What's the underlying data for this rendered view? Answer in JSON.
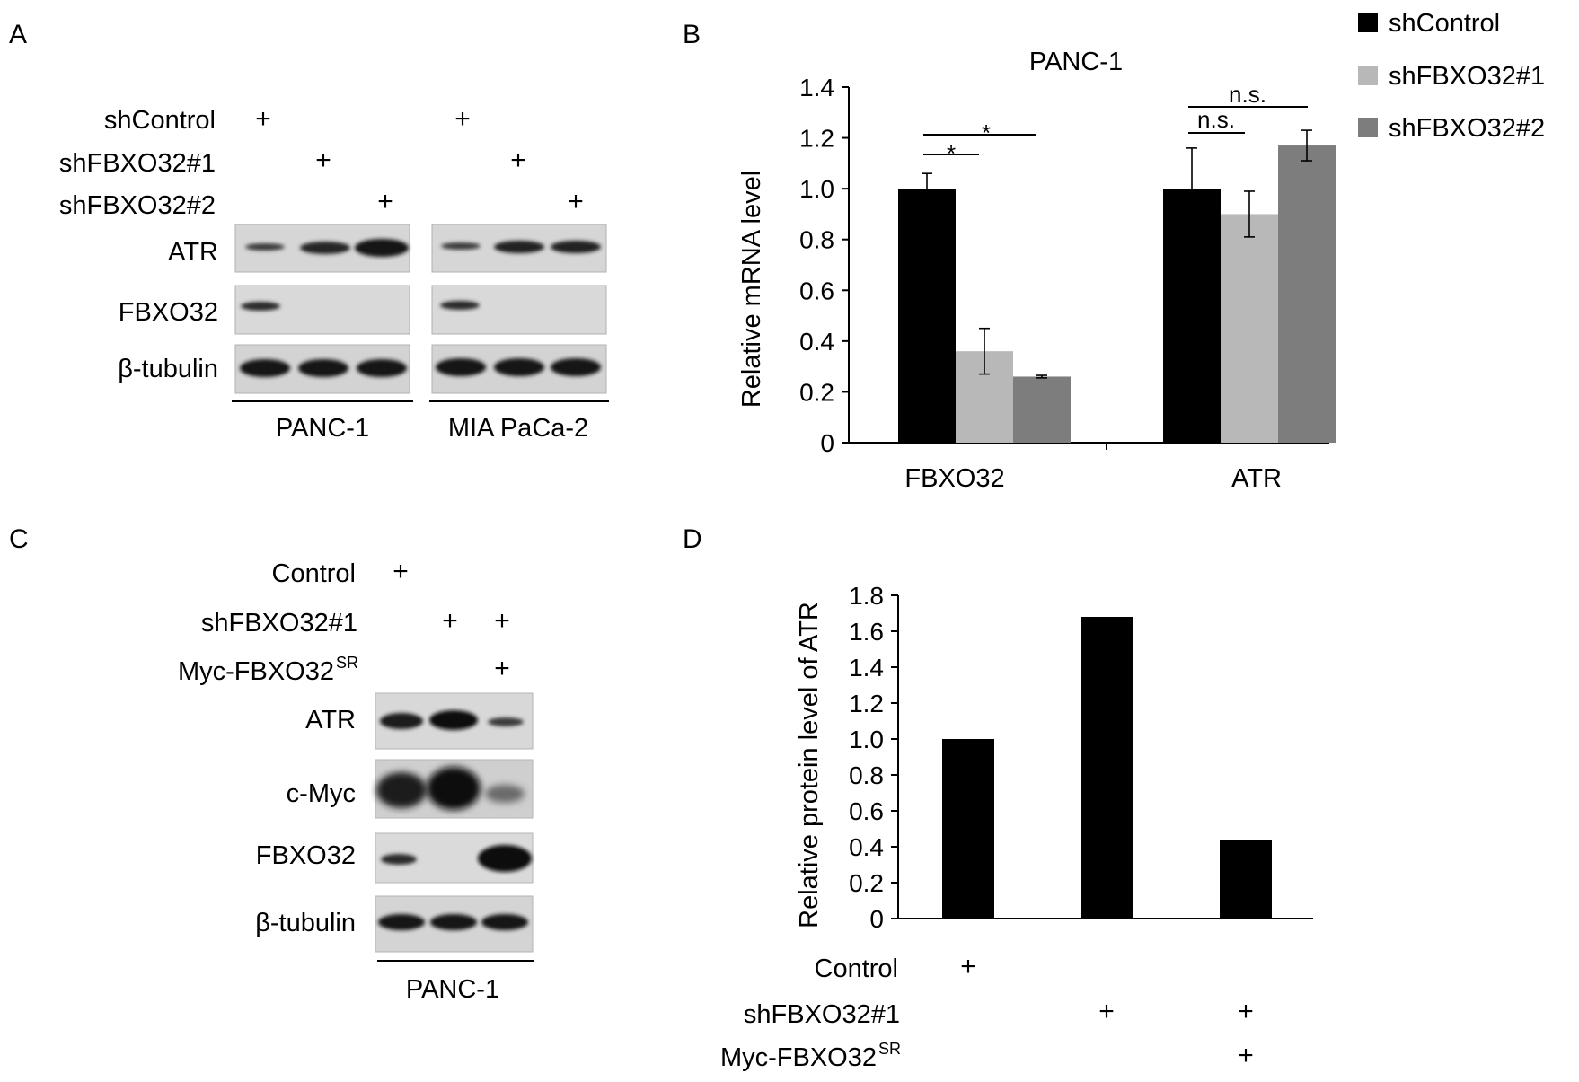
{
  "panelA": {
    "letter": "A",
    "rows": [
      {
        "label": "shControl",
        "marks": [
          "+",
          "",
          "",
          "+",
          "",
          ""
        ]
      },
      {
        "label": "shFBXO32#1",
        "marks": [
          "",
          "+",
          "",
          "",
          "+",
          ""
        ]
      },
      {
        "label": "shFBXO32#2",
        "marks": [
          "",
          "",
          "+",
          "",
          "",
          "+"
        ]
      }
    ],
    "blots": [
      "ATR",
      "FBXO32",
      "β-tubulin"
    ],
    "cell_lines": [
      "PANC-1",
      "MIA PaCa-2"
    ]
  },
  "panelB": {
    "letter": "B",
    "chart_data": {
      "type": "bar",
      "title": "PANC-1",
      "ylabel": "Relative mRNA level",
      "xlabel": "",
      "categories": [
        "FBXO32",
        "ATR"
      ],
      "ylim": [
        0,
        1.4
      ],
      "yticks": [
        "0",
        "0.2",
        "0.4",
        "0.6",
        "0.8",
        "1.0",
        "1.2",
        "1.4"
      ],
      "series": [
        {
          "name": "shControl",
          "color": "#000000",
          "values": [
            1.0,
            1.0
          ],
          "errors": [
            0.06,
            0.16
          ]
        },
        {
          "name": "shFBXO32#1",
          "color": "#b8b8b8",
          "values": [
            0.36,
            0.9
          ],
          "errors": [
            0.09,
            0.09
          ]
        },
        {
          "name": "shFBXO32#2",
          "color": "#7d7d7d",
          "values": [
            0.26,
            1.17
          ],
          "errors": [
            0.005,
            0.06
          ]
        }
      ],
      "annotations": [
        "*",
        "*",
        "n.s.",
        "n.s."
      ],
      "legend_position": "top-right"
    }
  },
  "panelC": {
    "letter": "C",
    "rows": [
      {
        "label": "Control",
        "marks": [
          "+",
          "",
          ""
        ]
      },
      {
        "label": "shFBXO32#1",
        "marks": [
          "",
          "+",
          "+"
        ]
      },
      {
        "label": "Myc-FBXO32",
        "sup": "SR",
        "marks": [
          "",
          "",
          "+"
        ]
      }
    ],
    "blots": [
      "ATR",
      "c-Myc",
      "FBXO32",
      "β-tubulin"
    ],
    "cell_line": "PANC-1"
  },
  "panelD": {
    "letter": "D",
    "chart_data": {
      "type": "bar",
      "title": "",
      "ylabel": "Relative protein level of ATR",
      "xlabel": "",
      "ylim": [
        0,
        1.8
      ],
      "yticks": [
        "0",
        "0.2",
        "0.4",
        "0.6",
        "0.8",
        "1.0",
        "1.2",
        "1.4",
        "1.6",
        "1.8"
      ],
      "series": [
        {
          "color": "#000000",
          "values": [
            1.0,
            1.68,
            0.44
          ]
        }
      ],
      "condition_rows": [
        {
          "label": "Control",
          "marks": [
            "+",
            "",
            ""
          ]
        },
        {
          "label": "shFBXO32#1",
          "marks": [
            "",
            "+",
            "+"
          ]
        },
        {
          "label": "Myc-FBXO32",
          "sup": "SR",
          "marks": [
            "",
            "",
            "+"
          ]
        }
      ]
    }
  }
}
